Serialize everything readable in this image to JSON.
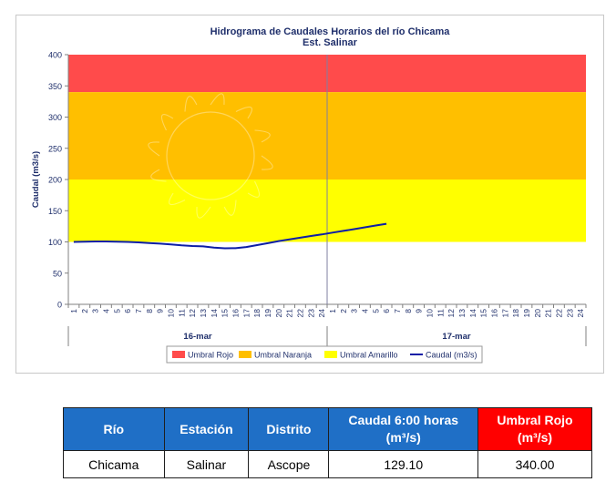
{
  "chart_data": {
    "type": "line",
    "title": "Hidrograma de Caudales Horarios del río Chicama",
    "subtitle": "Est. Salinar",
    "ylabel": "Caudal  (m3/s)",
    "ylim": [
      0,
      400
    ],
    "yticks": [
      0,
      50,
      100,
      150,
      200,
      250,
      300,
      350,
      400
    ],
    "x_hour_labels": [
      "1",
      "2",
      "3",
      "4",
      "5",
      "6",
      "7",
      "8",
      "9",
      "10",
      "11",
      "12",
      "13",
      "14",
      "15",
      "16",
      "17",
      "18",
      "19",
      "20",
      "21",
      "22",
      "23",
      "24"
    ],
    "days": [
      "16-mar",
      "17-mar"
    ],
    "bands": [
      {
        "name": "Umbral Rojo",
        "from": 340,
        "to": 400,
        "color": "#ff4b4b"
      },
      {
        "name": "Umbral Naranja",
        "from": 200,
        "to": 340,
        "color": "#ffbf00"
      },
      {
        "name": "Umbral Amarillo",
        "from": 100,
        "to": 200,
        "color": "#ffff00"
      }
    ],
    "series": [
      {
        "name": "Caudal (m3/s)",
        "color": "#0d1ea6",
        "x": [
          1,
          2,
          3,
          4,
          5,
          6,
          7,
          8,
          9,
          10,
          11,
          12,
          13,
          14,
          15,
          16,
          17,
          18,
          19,
          20,
          21,
          22,
          23,
          24,
          25,
          26,
          27,
          28,
          29,
          30
        ],
        "values": [
          100,
          100.5,
          100.8,
          100.8,
          100.5,
          100,
          99.2,
          98.3,
          97.2,
          96,
          94.5,
          93.5,
          92.9,
          91,
          89.8,
          89.9,
          91.8,
          94.9,
          98,
          101.3,
          104,
          106.7,
          109.5,
          112,
          114.9,
          117.7,
          120.5,
          123.4,
          126.3,
          129.1
        ]
      }
    ],
    "legend": [
      {
        "label": "Umbral Rojo",
        "color": "#ff4b4b",
        "kind": "box"
      },
      {
        "label": "Umbral Naranja",
        "color": "#ffbf00",
        "kind": "box"
      },
      {
        "label": "Umbral Amarillo",
        "color": "#ffff00",
        "kind": "box"
      },
      {
        "label": "Caudal (m3/s)",
        "color": "#0d1ea6",
        "kind": "line"
      }
    ],
    "legend_position": "bottom",
    "grid": false
  },
  "table": {
    "headers": [
      {
        "l1": "Río",
        "l2": ""
      },
      {
        "l1": "Estación",
        "l2": ""
      },
      {
        "l1": "Distrito",
        "l2": ""
      },
      {
        "l1": "Caudal  6:00 horas",
        "l2": "(m³/s)"
      },
      {
        "l1": "Umbral Rojo",
        "l2": "(m³/s)"
      }
    ],
    "row": [
      "Chicama",
      "Salinar",
      "Ascope",
      "129.10",
      "340.00"
    ]
  }
}
